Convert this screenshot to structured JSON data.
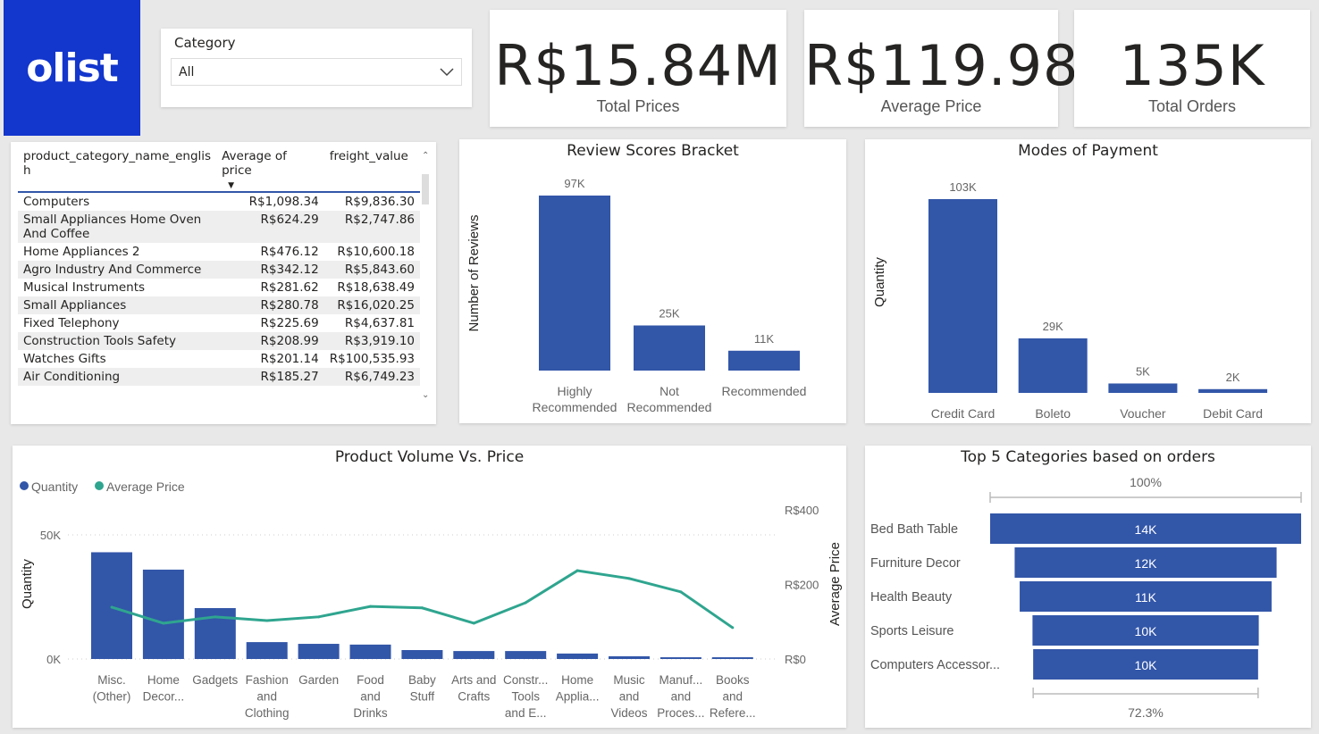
{
  "brand": {
    "logo_text": "olist",
    "color": "#1336cc"
  },
  "filter": {
    "label": "Category",
    "value": "All"
  },
  "kpis": [
    {
      "value": "R$15.84M",
      "label": "Total Prices"
    },
    {
      "value": "R$119.98",
      "label": "Average Price"
    },
    {
      "value": "135K",
      "label": "Total Orders"
    }
  ],
  "table": {
    "headers": [
      "product_category_name_english",
      "Average of price",
      "freight_value"
    ],
    "header_first_line": "product_category_name_englis",
    "header_second_line": "h",
    "rows": [
      [
        "Computers",
        "R$1,098.34",
        "R$9,836.30"
      ],
      [
        "Small Appliances Home Oven And Coffee",
        "R$624.29",
        "R$2,747.86"
      ],
      [
        "Home Appliances 2",
        "R$476.12",
        "R$10,600.18"
      ],
      [
        "Agro Industry And Commerce",
        "R$342.12",
        "R$5,843.60"
      ],
      [
        "Musical Instruments",
        "R$281.62",
        "R$18,638.49"
      ],
      [
        "Small Appliances",
        "R$280.78",
        "R$16,020.25"
      ],
      [
        "Fixed Telephony",
        "R$225.69",
        "R$4,637.81"
      ],
      [
        "Construction Tools Safety",
        "R$208.99",
        "R$3,919.10"
      ],
      [
        "Watches Gifts",
        "R$201.14",
        "R$100,535.93"
      ],
      [
        "Air Conditioning",
        "R$185.27",
        "R$6,749.23"
      ]
    ]
  },
  "colors": {
    "bar": "#3256a8",
    "line": "#2fa58f"
  },
  "chart_data": [
    {
      "type": "bar",
      "title": "Review Scores Bracket",
      "ylabel": "Number of Reviews",
      "xlabel": "",
      "categories": [
        "Highly Recommended",
        "Not Recommended",
        "Recommended"
      ],
      "values": [
        97000,
        25000,
        11000
      ],
      "labels": [
        "97K",
        "25K",
        "11K"
      ]
    },
    {
      "type": "bar",
      "title": "Modes of Payment",
      "ylabel": "Quantity",
      "xlabel": "",
      "categories": [
        "Credit Card",
        "Boleto",
        "Voucher",
        "Debit Card"
      ],
      "values": [
        103000,
        29000,
        5000,
        2000
      ],
      "labels": [
        "103K",
        "29K",
        "5K",
        "2K"
      ]
    },
    {
      "type": "bar+line",
      "title": "Product Volume Vs. Price",
      "legend": "top-left",
      "ylabel": "Quantity",
      "y2label": "Average Price",
      "yticks": [
        "0K",
        "50K"
      ],
      "y2ticks": [
        "R$0",
        "R$200",
        "R$400"
      ],
      "ylim": [
        0,
        50000
      ],
      "y2lim": [
        0,
        400
      ],
      "categories": [
        [
          "Misc.",
          "(Other)"
        ],
        [
          "Home",
          "Decor..."
        ],
        [
          "Gadgets"
        ],
        [
          "Fashion",
          "and",
          "Clothing"
        ],
        [
          "Garden"
        ],
        [
          "Food",
          "and",
          "Drinks"
        ],
        [
          "Baby",
          "Stuff"
        ],
        [
          "Arts and",
          "Crafts"
        ],
        [
          "Constr...",
          "Tools",
          "and E..."
        ],
        [
          "Home",
          "Applia..."
        ],
        [
          "Music",
          "and",
          "Videos"
        ],
        [
          "Manuf...",
          "and",
          "Proces..."
        ],
        [
          "Books",
          "and",
          "Refere..."
        ]
      ],
      "series": [
        {
          "name": "Quantity",
          "type": "bar",
          "values": [
            43000,
            36000,
            20500,
            6800,
            6100,
            5800,
            3600,
            3200,
            3200,
            2200,
            1100,
            700,
            700
          ]
        },
        {
          "name": "Average Price",
          "type": "line",
          "values": [
            139,
            96,
            113,
            103,
            113,
            141,
            137,
            96,
            151,
            237,
            216,
            180,
            84
          ]
        }
      ]
    },
    {
      "type": "funnel",
      "title": "Top 5 Categories based on orders",
      "categories": [
        "Bed Bath Table",
        "Furniture Decor",
        "Health Beauty",
        "Sports Leisure",
        "Computers Accessor..."
      ],
      "values": [
        13950,
        11750,
        11300,
        10150,
        10090
      ],
      "labels": [
        "14K",
        "12K",
        "11K",
        "10K",
        "10K"
      ],
      "top_pct": "100%",
      "bottom_pct": "72.3%"
    }
  ]
}
